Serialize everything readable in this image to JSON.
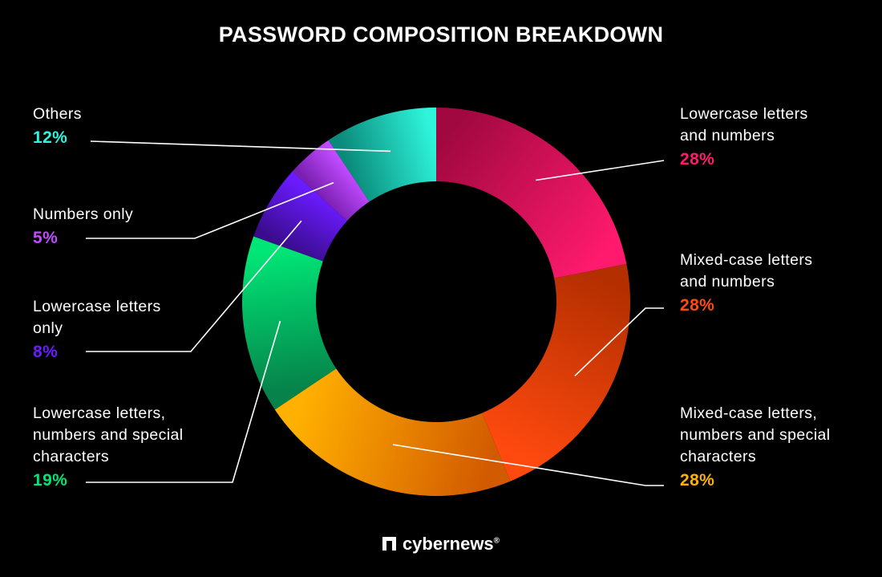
{
  "chart_data": {
    "type": "pie",
    "title": "PASSWORD COMPOSITION BREAKDOWN",
    "slices": [
      {
        "label": "Lowercase letters\nand numbers",
        "value": 28,
        "value_label": "28%",
        "color": "#ff1a6e",
        "color_dark": "#a0083f"
      },
      {
        "label": "Mixed-case letters\nand numbers",
        "value": 28,
        "value_label": "28%",
        "color": "#ff4a0f",
        "color_dark": "#b32f00"
      },
      {
        "label": "Mixed-case letters,\nnumbers and special\ncharacters",
        "value": 28,
        "value_label": "28%",
        "color": "#ffb000",
        "color_dark": "#d25a00"
      },
      {
        "label": "Lowercase letters,\nnumbers and special\ncharacters",
        "value": 19,
        "value_label": "19%",
        "color": "#00e676",
        "color_dark": "#06824a"
      },
      {
        "label": "Lowercase letters\nonly",
        "value": 8,
        "value_label": "8%",
        "color": "#6a1bff",
        "color_dark": "#3a0c8c"
      },
      {
        "label": "Numbers only",
        "value": 5,
        "value_label": "5%",
        "color": "#c04bff",
        "color_dark": "#7a1fb0"
      },
      {
        "label": "Others",
        "value": 12,
        "value_label": "12%",
        "color": "#2ff5dc",
        "color_dark": "#0a8a7a"
      }
    ]
  },
  "branding": {
    "name": "cybernews",
    "mark": "®",
    "logo_icon": "cybernews-logo-icon"
  }
}
